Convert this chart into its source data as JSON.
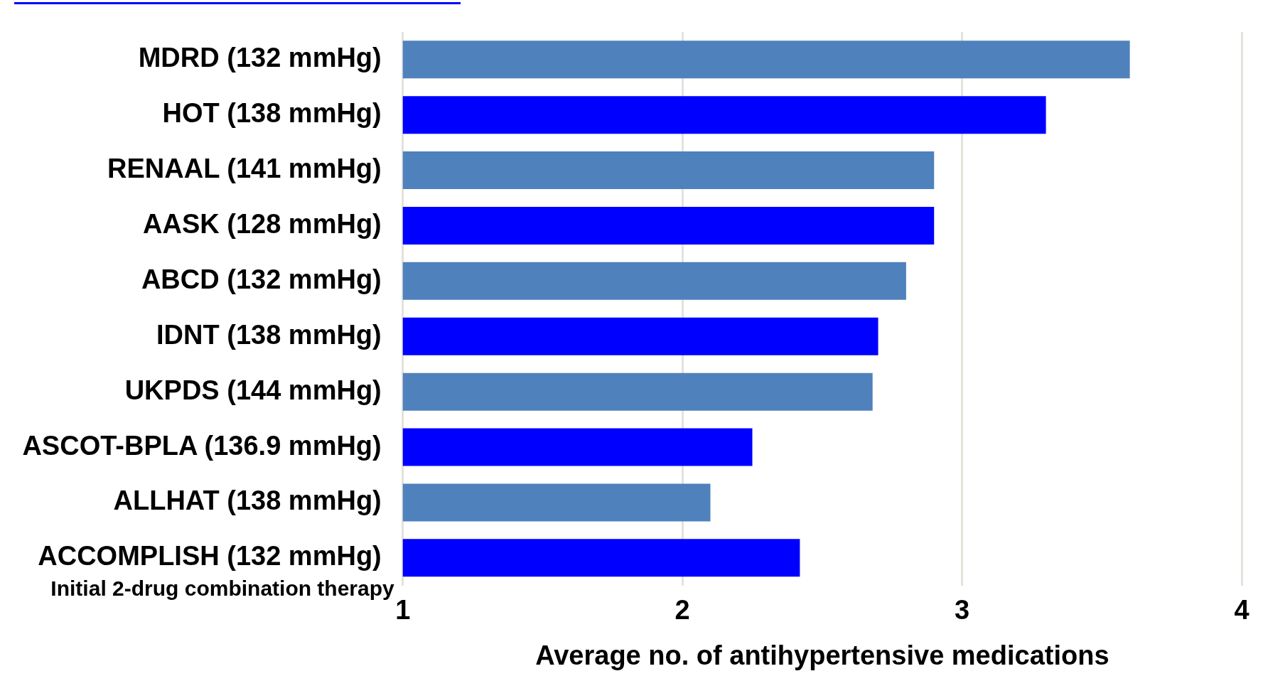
{
  "chart_data": {
    "type": "bar",
    "orientation": "horizontal",
    "xlabel": "Average no. of antihypertensive medications",
    "categories": [
      "MDRD (132 mmHg)",
      "HOT (138 mmHg)",
      "RENAAL (141 mmHg)",
      "AASK (128 mmHg)",
      "ABCD (132 mmHg)",
      "IDNT (138 mmHg)",
      "UKPDS (144 mmHg)",
      "ASCOT-BPLA (136.9 mmHg)",
      "ALLHAT (138 mmHg)",
      "ACCOMPLISH (132 mmHg)"
    ],
    "values": [
      3.6,
      3.3,
      2.9,
      2.9,
      2.8,
      2.7,
      2.68,
      2.25,
      2.1,
      2.42
    ],
    "colors": [
      "#4f81bd",
      "#0000ff",
      "#4f81bd",
      "#0000ff",
      "#4f81bd",
      "#0000ff",
      "#4f81bd",
      "#0000ff",
      "#4f81bd",
      "#0000ff"
    ],
    "xlim": [
      1,
      4
    ],
    "xticks": [
      1,
      2,
      3,
      4
    ],
    "grid": "x",
    "legend": false,
    "annotations": [
      "Initial 2-drug combination therapy"
    ]
  }
}
